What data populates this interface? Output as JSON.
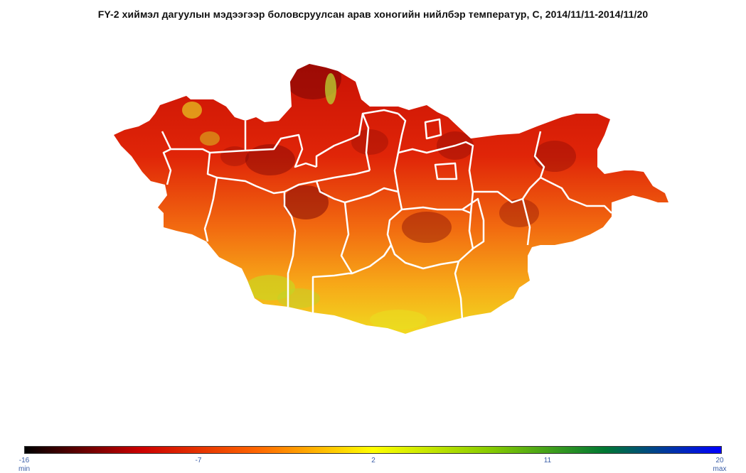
{
  "title": "FY-2 хиймэл дагуулын мэдээгээр боловсруулсан арав хоногийн нийлбэр температур, С, 2014/11/11-2014/11/20",
  "legend": {
    "ticks": [
      "-16",
      "-7",
      "2",
      "11",
      "20"
    ],
    "min_label": "min",
    "max_label": "max",
    "range": [
      -16,
      20
    ],
    "colors": [
      "#000000",
      "#cc0000",
      "#ff6600",
      "#ffff00",
      "#88cc00",
      "#007733",
      "#0000ff"
    ]
  },
  "map": {
    "border_color": "#ffffff",
    "land_fill_north": "#dd1a05",
    "land_fill_center": "#ee4a00",
    "land_fill_south": "#f8c415",
    "cold_spot": "#7a0606"
  }
}
